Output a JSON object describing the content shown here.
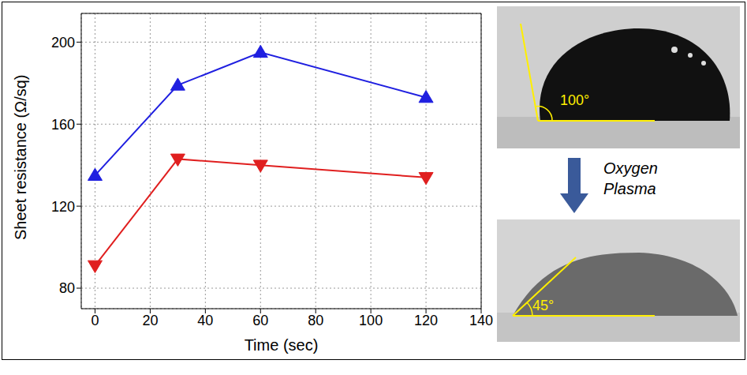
{
  "chart_data": {
    "type": "line",
    "x_label": "Time (sec)",
    "y_label": "Sheet resistance (Ω/sq)",
    "x": [
      0,
      30,
      60,
      120
    ],
    "series": [
      {
        "color": "#1f1fe0",
        "marker": "triangle-up",
        "values": [
          135,
          179,
          195,
          173
        ]
      },
      {
        "color": "#e01f1f",
        "marker": "triangle-down",
        "values": [
          91,
          143,
          140,
          134
        ]
      }
    ],
    "xlim": [
      -5,
      140
    ],
    "xticks": [
      0,
      20,
      40,
      60,
      80,
      100,
      120,
      140
    ],
    "ylim": [
      70,
      214
    ],
    "yticks": [
      80,
      120,
      160,
      200
    ],
    "grid": true
  },
  "inset": {
    "before_angle": "100°",
    "arrow_label": "Oxygen Plasma",
    "after_angle": "45°"
  }
}
